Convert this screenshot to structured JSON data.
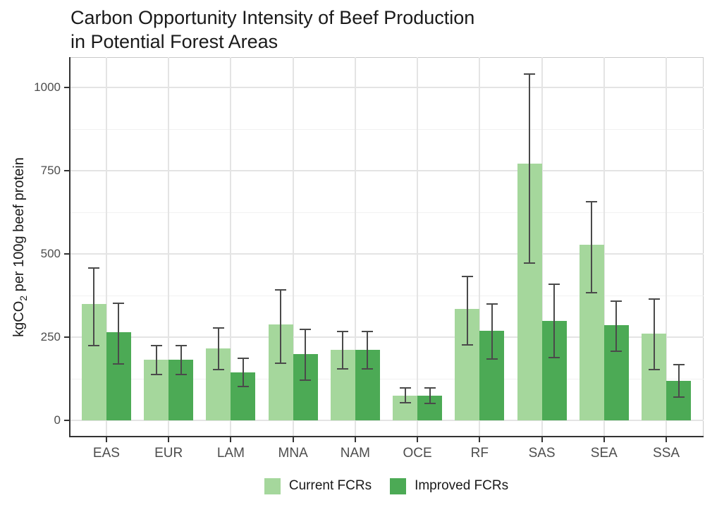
{
  "chart_data": {
    "type": "bar",
    "title": "Carbon Opportunity Intensity of Beef Production in Potential Forest Areas",
    "title_line1": "Carbon Opportunity Intensity of Beef Production",
    "title_line2": "in Potential Forest Areas",
    "ylabel": "kgCO2 per 100g beef protein",
    "ylabel_parts": {
      "pre": "kgCO",
      "sub": "2",
      "post": " per 100g beef protein"
    },
    "categories": [
      "EAS",
      "EUR",
      "LAM",
      "MNA",
      "NAM",
      "OCE",
      "RF",
      "SAS",
      "SEA",
      "SSA"
    ],
    "series": [
      {
        "name": "Current FCRs",
        "color": "#a5d79c",
        "values": [
          350,
          182,
          217,
          288,
          213,
          75,
          335,
          770,
          527,
          260
        ],
        "error_low": [
          225,
          139,
          152,
          173,
          155,
          53,
          227,
          473,
          383,
          154
        ],
        "error_high": [
          458,
          224,
          278,
          392,
          267,
          99,
          433,
          1040,
          657,
          365
        ]
      },
      {
        "name": "Improved FCRs",
        "color": "#4caa55",
        "values": [
          266,
          182,
          145,
          200,
          213,
          75,
          270,
          300,
          287,
          119
        ],
        "error_low": [
          171,
          139,
          103,
          122,
          155,
          52,
          185,
          189,
          209,
          71
        ],
        "error_high": [
          352,
          224,
          187,
          274,
          268,
          99,
          350,
          409,
          358,
          168
        ]
      }
    ],
    "y_ticks": [
      0,
      250,
      500,
      750,
      1000
    ],
    "y_minor_ticks": [
      125,
      375,
      625,
      875
    ],
    "ylim": [
      -50,
      1090
    ],
    "xlabel": "",
    "legend_position": "bottom",
    "grid": {
      "horizontal": "major+minor",
      "vertical": "major-at-category-centers"
    },
    "errorbar_color": "#4a4a4a",
    "axis_text_color": "#4d4d4d"
  }
}
